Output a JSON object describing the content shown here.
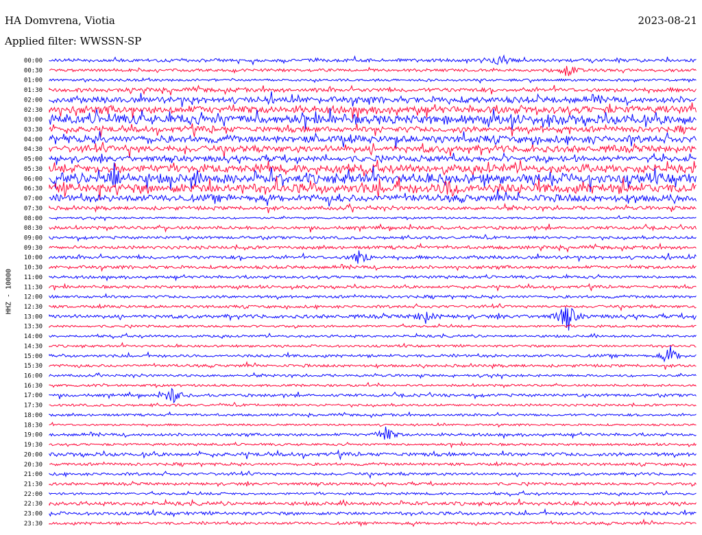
{
  "header": {
    "station": "HA Domvrena, Viotia",
    "date": "2023-08-21",
    "filter": "Applied filter: WWSSN-SP"
  },
  "colors": {
    "even": "#0000ff",
    "odd": "#ff0033"
  },
  "chart_data": {
    "type": "line",
    "title": "HA Domvrena, Viotia",
    "subtitle": "Applied filter: WWSSN-SP",
    "ylabel": "HHZ - 10000",
    "row_labels": [
      "00:00",
      "00:30",
      "01:00",
      "01:30",
      "02:00",
      "02:30",
      "03:00",
      "03:30",
      "04:00",
      "04:30",
      "05:00",
      "05:30",
      "06:00",
      "06:30",
      "07:00",
      "07:30",
      "08:00",
      "08:30",
      "09:00",
      "09:30",
      "10:00",
      "10:30",
      "11:00",
      "11:30",
      "12:00",
      "12:30",
      "13:00",
      "13:30",
      "14:00",
      "14:30",
      "15:00",
      "15:30",
      "16:00",
      "16:30",
      "17:00",
      "17:30",
      "18:00",
      "18:30",
      "19:00",
      "19:30",
      "20:00",
      "20:30",
      "21:00",
      "21:30",
      "22:00",
      "22:30",
      "23:00",
      "23:30"
    ],
    "row_activity": [
      0.25,
      0.2,
      0.15,
      0.35,
      0.6,
      0.75,
      0.95,
      0.55,
      0.7,
      0.65,
      0.55,
      0.8,
      1.0,
      1.0,
      0.7,
      0.3,
      0.1,
      0.25,
      0.2,
      0.25,
      0.25,
      0.25,
      0.2,
      0.2,
      0.2,
      0.2,
      0.3,
      0.15,
      0.15,
      0.15,
      0.2,
      0.2,
      0.15,
      0.15,
      0.2,
      0.15,
      0.15,
      0.1,
      0.2,
      0.15,
      0.3,
      0.2,
      0.2,
      0.2,
      0.15,
      0.3,
      0.25,
      0.2
    ],
    "events": [
      {
        "row": 0,
        "at": 0.7,
        "amp": 0.6
      },
      {
        "row": 1,
        "at": 0.8,
        "amp": 0.7
      },
      {
        "row": 12,
        "at": 0.1,
        "amp": 1.0
      },
      {
        "row": 13,
        "at": 0.62,
        "amp": 1.0
      },
      {
        "row": 20,
        "at": 0.48,
        "amp": 1.0
      },
      {
        "row": 26,
        "at": 0.8,
        "amp": 1.6
      },
      {
        "row": 26,
        "at": 0.58,
        "amp": 0.7
      },
      {
        "row": 30,
        "at": 0.96,
        "amp": 1.0
      },
      {
        "row": 34,
        "at": 0.19,
        "amp": 0.9
      },
      {
        "row": 38,
        "at": 0.52,
        "amp": 0.9
      }
    ]
  }
}
